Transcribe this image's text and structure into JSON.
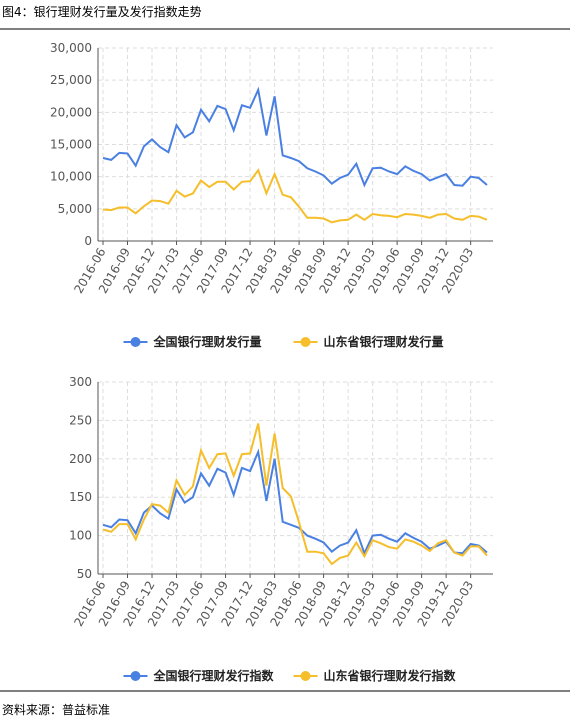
{
  "header": {
    "title": "图4：银行理财发行量及发行指数走势"
  },
  "chart_data": [
    {
      "type": "line",
      "categories": [
        "2016-06",
        null,
        null,
        "2016-09",
        null,
        null,
        "2016-12",
        null,
        null,
        "2017-03",
        null,
        null,
        "2017-06",
        null,
        null,
        "2017-09",
        null,
        null,
        "2017-12",
        null,
        null,
        "2018-03",
        null,
        null,
        "2018-06",
        null,
        null,
        "2018-09",
        null,
        null,
        "2018-12",
        null,
        null,
        "2019-03",
        null,
        null,
        "2019-06",
        null,
        null,
        "2019-09",
        null,
        null,
        "2019-12",
        null,
        null,
        "2020-03",
        null,
        null
      ],
      "ylim": [
        0,
        30000
      ],
      "yticks": [
        0,
        {
          "value": 5000,
          "label": "5,000"
        },
        {
          "value": 10000,
          "label": "10,000"
        },
        {
          "value": 15000,
          "label": "15,000"
        },
        {
          "value": 20000,
          "label": "20,000"
        },
        {
          "value": 25000,
          "label": "25,000"
        },
        {
          "value": 30000,
          "label": "30,000"
        }
      ],
      "grid": true,
      "legend": "bottom",
      "series": [
        {
          "name": "全国银行理财发行量",
          "color": "#4a80e2",
          "values": [
            12900,
            12600,
            13700,
            13600,
            11700,
            14700,
            15800,
            14600,
            13800,
            18000,
            16100,
            16900,
            20400,
            18600,
            21000,
            20500,
            17200,
            21100,
            20700,
            23500,
            16400,
            22500,
            13300,
            12900,
            12400,
            11300,
            10800,
            10200,
            8900,
            9800,
            10300,
            12000,
            8700,
            11300,
            11400,
            10800,
            10400,
            11600,
            10900,
            10400,
            9400,
            9900,
            10400,
            8700,
            8600,
            10000,
            9800,
            8700
          ]
        },
        {
          "name": "山东省银行理财发行量",
          "color": "#f5be2a",
          "values": [
            4900,
            4800,
            5200,
            5200,
            4300,
            5400,
            6300,
            6200,
            5800,
            7800,
            6900,
            7400,
            9400,
            8400,
            9200,
            9200,
            8000,
            9200,
            9300,
            11000,
            7400,
            10400,
            7200,
            6800,
            5300,
            3600,
            3600,
            3500,
            2900,
            3200,
            3300,
            4100,
            3300,
            4200,
            4000,
            3900,
            3700,
            4200,
            4100,
            3900,
            3600,
            4100,
            4200,
            3500,
            3300,
            3900,
            3800,
            3300
          ]
        }
      ]
    },
    {
      "type": "line",
      "categories": [
        "2016-06",
        null,
        null,
        "2016-09",
        null,
        null,
        "2016-12",
        null,
        null,
        "2017-03",
        null,
        null,
        "2017-06",
        null,
        null,
        "2017-09",
        null,
        null,
        "2017-12",
        null,
        null,
        "2018-03",
        null,
        null,
        "2018-06",
        null,
        null,
        "2018-09",
        null,
        null,
        "2018-12",
        null,
        null,
        "2019-03",
        null,
        null,
        "2019-06",
        null,
        null,
        "2019-09",
        null,
        null,
        "2019-12",
        null,
        null,
        "2020-03",
        null,
        null
      ],
      "ylim": [
        50,
        300
      ],
      "yticks": [
        50,
        100,
        150,
        200,
        250,
        300
      ],
      "grid": true,
      "legend": "bottom",
      "series": [
        {
          "name": "全国银行理财发行指数",
          "color": "#4a80e2",
          "values": [
            114,
            111,
            121,
            120,
            103,
            130,
            139,
            129,
            122,
            160,
            143,
            150,
            181,
            165,
            187,
            182,
            153,
            188,
            184,
            209,
            145,
            200,
            118,
            114,
            110,
            100,
            96,
            91,
            79,
            87,
            91,
            107,
            77,
            100,
            101,
            96,
            92,
            103,
            97,
            92,
            83,
            87,
            92,
            78,
            77,
            89,
            87,
            78
          ]
        },
        {
          "name": "山东省银行理财发行指数",
          "color": "#f5be2a",
          "values": [
            108,
            105,
            115,
            115,
            95,
            121,
            141,
            139,
            130,
            172,
            153,
            164,
            211,
            188,
            206,
            207,
            178,
            206,
            207,
            246,
            165,
            233,
            162,
            151,
            117,
            79,
            79,
            77,
            63,
            71,
            74,
            91,
            73,
            94,
            90,
            85,
            83,
            95,
            92,
            87,
            80,
            90,
            94,
            78,
            74,
            86,
            86,
            74
          ]
        }
      ]
    }
  ],
  "footer": {
    "source": "资料来源：普益标准"
  }
}
